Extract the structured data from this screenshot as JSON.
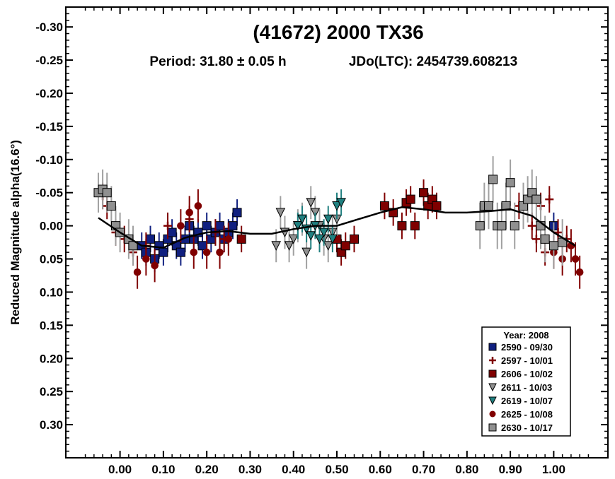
{
  "chart_data": {
    "type": "scatter",
    "title": "(41672) 2000 TX36",
    "subtitle_period": "Period: 31.80 ± 0.05 h",
    "subtitle_epoch": "JDo(LTC): 2454739.608213",
    "ylabel": "Reduced Magnitude alpha(16.6°)",
    "xlabel": "",
    "xlim": [
      -0.125,
      1.125
    ],
    "ylim": [
      0.35,
      -0.33
    ],
    "y_inverted": true,
    "x_ticks": [
      "0.00",
      "0.10",
      "0.20",
      "0.30",
      "0.40",
      "0.50",
      "0.60",
      "0.70",
      "0.80",
      "0.90",
      "1.00"
    ],
    "y_ticks": [
      "-0.30",
      "-0.25",
      "-0.20",
      "-0.15",
      "-0.10",
      "-0.05",
      "0.00",
      "0.05",
      "0.10",
      "0.15",
      "0.20",
      "0.25",
      "0.30"
    ],
    "grid": false,
    "legend_position": "bottom-right",
    "legend_title": "Year: 2008",
    "fit_curve": {
      "x": [
        -0.05,
        0.0,
        0.05,
        0.1,
        0.15,
        0.2,
        0.25,
        0.3,
        0.35,
        0.4,
        0.45,
        0.5,
        0.55,
        0.6,
        0.65,
        0.7,
        0.75,
        0.8,
        0.85,
        0.9,
        0.95,
        1.0,
        1.05
      ],
      "y": [
        -0.012,
        0.01,
        0.03,
        0.033,
        0.018,
        0.01,
        0.008,
        0.012,
        0.012,
        0.005,
        0.0,
        0.0,
        -0.01,
        -0.02,
        -0.028,
        -0.025,
        -0.02,
        -0.02,
        -0.022,
        -0.025,
        -0.015,
        0.01,
        0.03
      ]
    },
    "series": [
      {
        "name": "2590 - 09/30",
        "marker": "square",
        "color": "#102080",
        "x": [
          0.05,
          0.06,
          0.07,
          0.08,
          0.09,
          0.1,
          0.11,
          0.12,
          0.13,
          0.14,
          0.15,
          0.16,
          0.17,
          0.18,
          0.19,
          0.2,
          0.21,
          0.22,
          0.23,
          0.24,
          0.25,
          0.26,
          0.27,
          1.0
        ],
        "y": [
          0.03,
          0.04,
          0.02,
          0.05,
          0.03,
          0.04,
          0.02,
          0.01,
          0.03,
          0.04,
          0.02,
          0.0,
          0.02,
          0.01,
          0.03,
          0.0,
          0.02,
          0.01,
          0.0,
          0.02,
          0.01,
          0.0,
          -0.02,
          0.0
        ],
        "err": [
          0.02,
          0.02,
          0.02,
          0.02,
          0.02,
          0.02,
          0.02,
          0.02,
          0.02,
          0.02,
          0.02,
          0.02,
          0.02,
          0.02,
          0.02,
          0.02,
          0.02,
          0.02,
          0.02,
          0.02,
          0.02,
          0.02,
          0.02,
          0.02
        ]
      },
      {
        "name": "2597 - 10/01",
        "marker": "plus",
        "color": "#800000",
        "x": [
          -0.04,
          -0.03,
          -0.01,
          0.01,
          0.03,
          0.06,
          0.11,
          0.16,
          0.22,
          0.24,
          0.97,
          0.99,
          1.01,
          1.03,
          0.92,
          0.95,
          0.96,
          0.98
        ],
        "y": [
          -0.045,
          -0.03,
          0.01,
          0.02,
          0.04,
          0.03,
          0.0,
          -0.01,
          0.01,
          0.02,
          -0.03,
          -0.04,
          0.01,
          0.02,
          -0.03,
          0.0,
          0.02,
          0.04
        ],
        "err": [
          0.02,
          0.02,
          0.02,
          0.02,
          0.02,
          0.02,
          0.02,
          0.02,
          0.02,
          0.02,
          0.02,
          0.02,
          0.02,
          0.02,
          0.02,
          0.02,
          0.02,
          0.02
        ]
      },
      {
        "name": "2606 - 10/02",
        "marker": "square",
        "color": "#800000",
        "x": [
          0.5,
          0.51,
          0.52,
          0.54,
          0.61,
          0.63,
          0.65,
          0.66,
          0.67,
          0.68,
          0.7,
          0.71,
          0.72,
          0.73,
          0.28
        ],
        "y": [
          0.02,
          0.04,
          0.03,
          0.02,
          -0.03,
          -0.02,
          0.0,
          -0.035,
          -0.04,
          0.0,
          -0.05,
          -0.03,
          -0.04,
          -0.03,
          0.02
        ],
        "err": [
          0.02,
          0.02,
          0.02,
          0.02,
          0.02,
          0.02,
          0.02,
          0.02,
          0.02,
          0.02,
          0.02,
          0.02,
          0.02,
          0.02,
          0.02
        ]
      },
      {
        "name": "2611 - 10/03",
        "marker": "triangle-down",
        "color": "#909090",
        "x": [
          0.36,
          0.37,
          0.38,
          0.39,
          0.4,
          0.41,
          0.42,
          0.43,
          0.44,
          0.45,
          0.46,
          0.47,
          0.48,
          0.49,
          0.5
        ],
        "y": [
          0.03,
          -0.02,
          0.01,
          0.03,
          0.02,
          0.0,
          -0.01,
          0.04,
          -0.035,
          -0.02,
          0.0,
          0.02,
          0.03,
          0.01,
          -0.01
        ],
        "err": [
          0.025,
          0.025,
          0.025,
          0.025,
          0.025,
          0.025,
          0.025,
          0.025,
          0.025,
          0.025,
          0.025,
          0.025,
          0.025,
          0.025,
          0.025
        ]
      },
      {
        "name": "2619 - 10/07",
        "marker": "triangle-down",
        "color": "#208080",
        "x": [
          0.41,
          0.42,
          0.43,
          0.44,
          0.45,
          0.46,
          0.47,
          0.48,
          0.49,
          0.5,
          0.51
        ],
        "y": [
          0.0,
          -0.01,
          0.005,
          0.015,
          0.0,
          0.02,
          0.01,
          -0.01,
          0.02,
          -0.03,
          -0.035
        ],
        "err": [
          0.02,
          0.02,
          0.02,
          0.02,
          0.02,
          0.02,
          0.02,
          0.02,
          0.02,
          0.02,
          0.02
        ]
      },
      {
        "name": "2625 - 10/08",
        "marker": "circle",
        "color": "#800000",
        "x": [
          0.04,
          0.06,
          0.08,
          0.14,
          0.16,
          0.17,
          0.18,
          0.2,
          0.23,
          0.25,
          1.0,
          1.02,
          1.04,
          1.05,
          1.06
        ],
        "y": [
          0.07,
          0.05,
          0.06,
          0.0,
          -0.02,
          0.04,
          -0.03,
          0.04,
          0.04,
          0.02,
          0.04,
          0.05,
          0.03,
          0.05,
          0.07
        ],
        "err": [
          0.025,
          0.025,
          0.025,
          0.025,
          0.025,
          0.025,
          0.025,
          0.025,
          0.025,
          0.025,
          0.025,
          0.025,
          0.025,
          0.025,
          0.025
        ]
      },
      {
        "name": "2630 - 10/17",
        "marker": "square",
        "color": "#909090",
        "x": [
          -0.05,
          -0.04,
          -0.03,
          -0.02,
          -0.01,
          0.0,
          0.02,
          0.03,
          0.83,
          0.84,
          0.85,
          0.86,
          0.87,
          0.88,
          0.89,
          0.9,
          0.91,
          0.93,
          0.94,
          0.95,
          0.96,
          0.97,
          0.98,
          1.0,
          1.02
        ],
        "y": [
          -0.05,
          -0.055,
          -0.05,
          -0.03,
          0.0,
          0.01,
          0.02,
          0.03,
          0.0,
          -0.03,
          -0.03,
          -0.07,
          0.0,
          0.0,
          -0.03,
          -0.065,
          0.0,
          -0.03,
          -0.04,
          -0.05,
          -0.04,
          0.0,
          0.02,
          0.03,
          0.025
        ],
        "err": [
          0.03,
          0.03,
          0.03,
          0.03,
          0.03,
          0.03,
          0.03,
          0.03,
          0.035,
          0.035,
          0.035,
          0.035,
          0.035,
          0.035,
          0.035,
          0.035,
          0.035,
          0.035,
          0.035,
          0.035,
          0.035,
          0.035,
          0.035,
          0.035,
          0.035
        ]
      }
    ]
  }
}
